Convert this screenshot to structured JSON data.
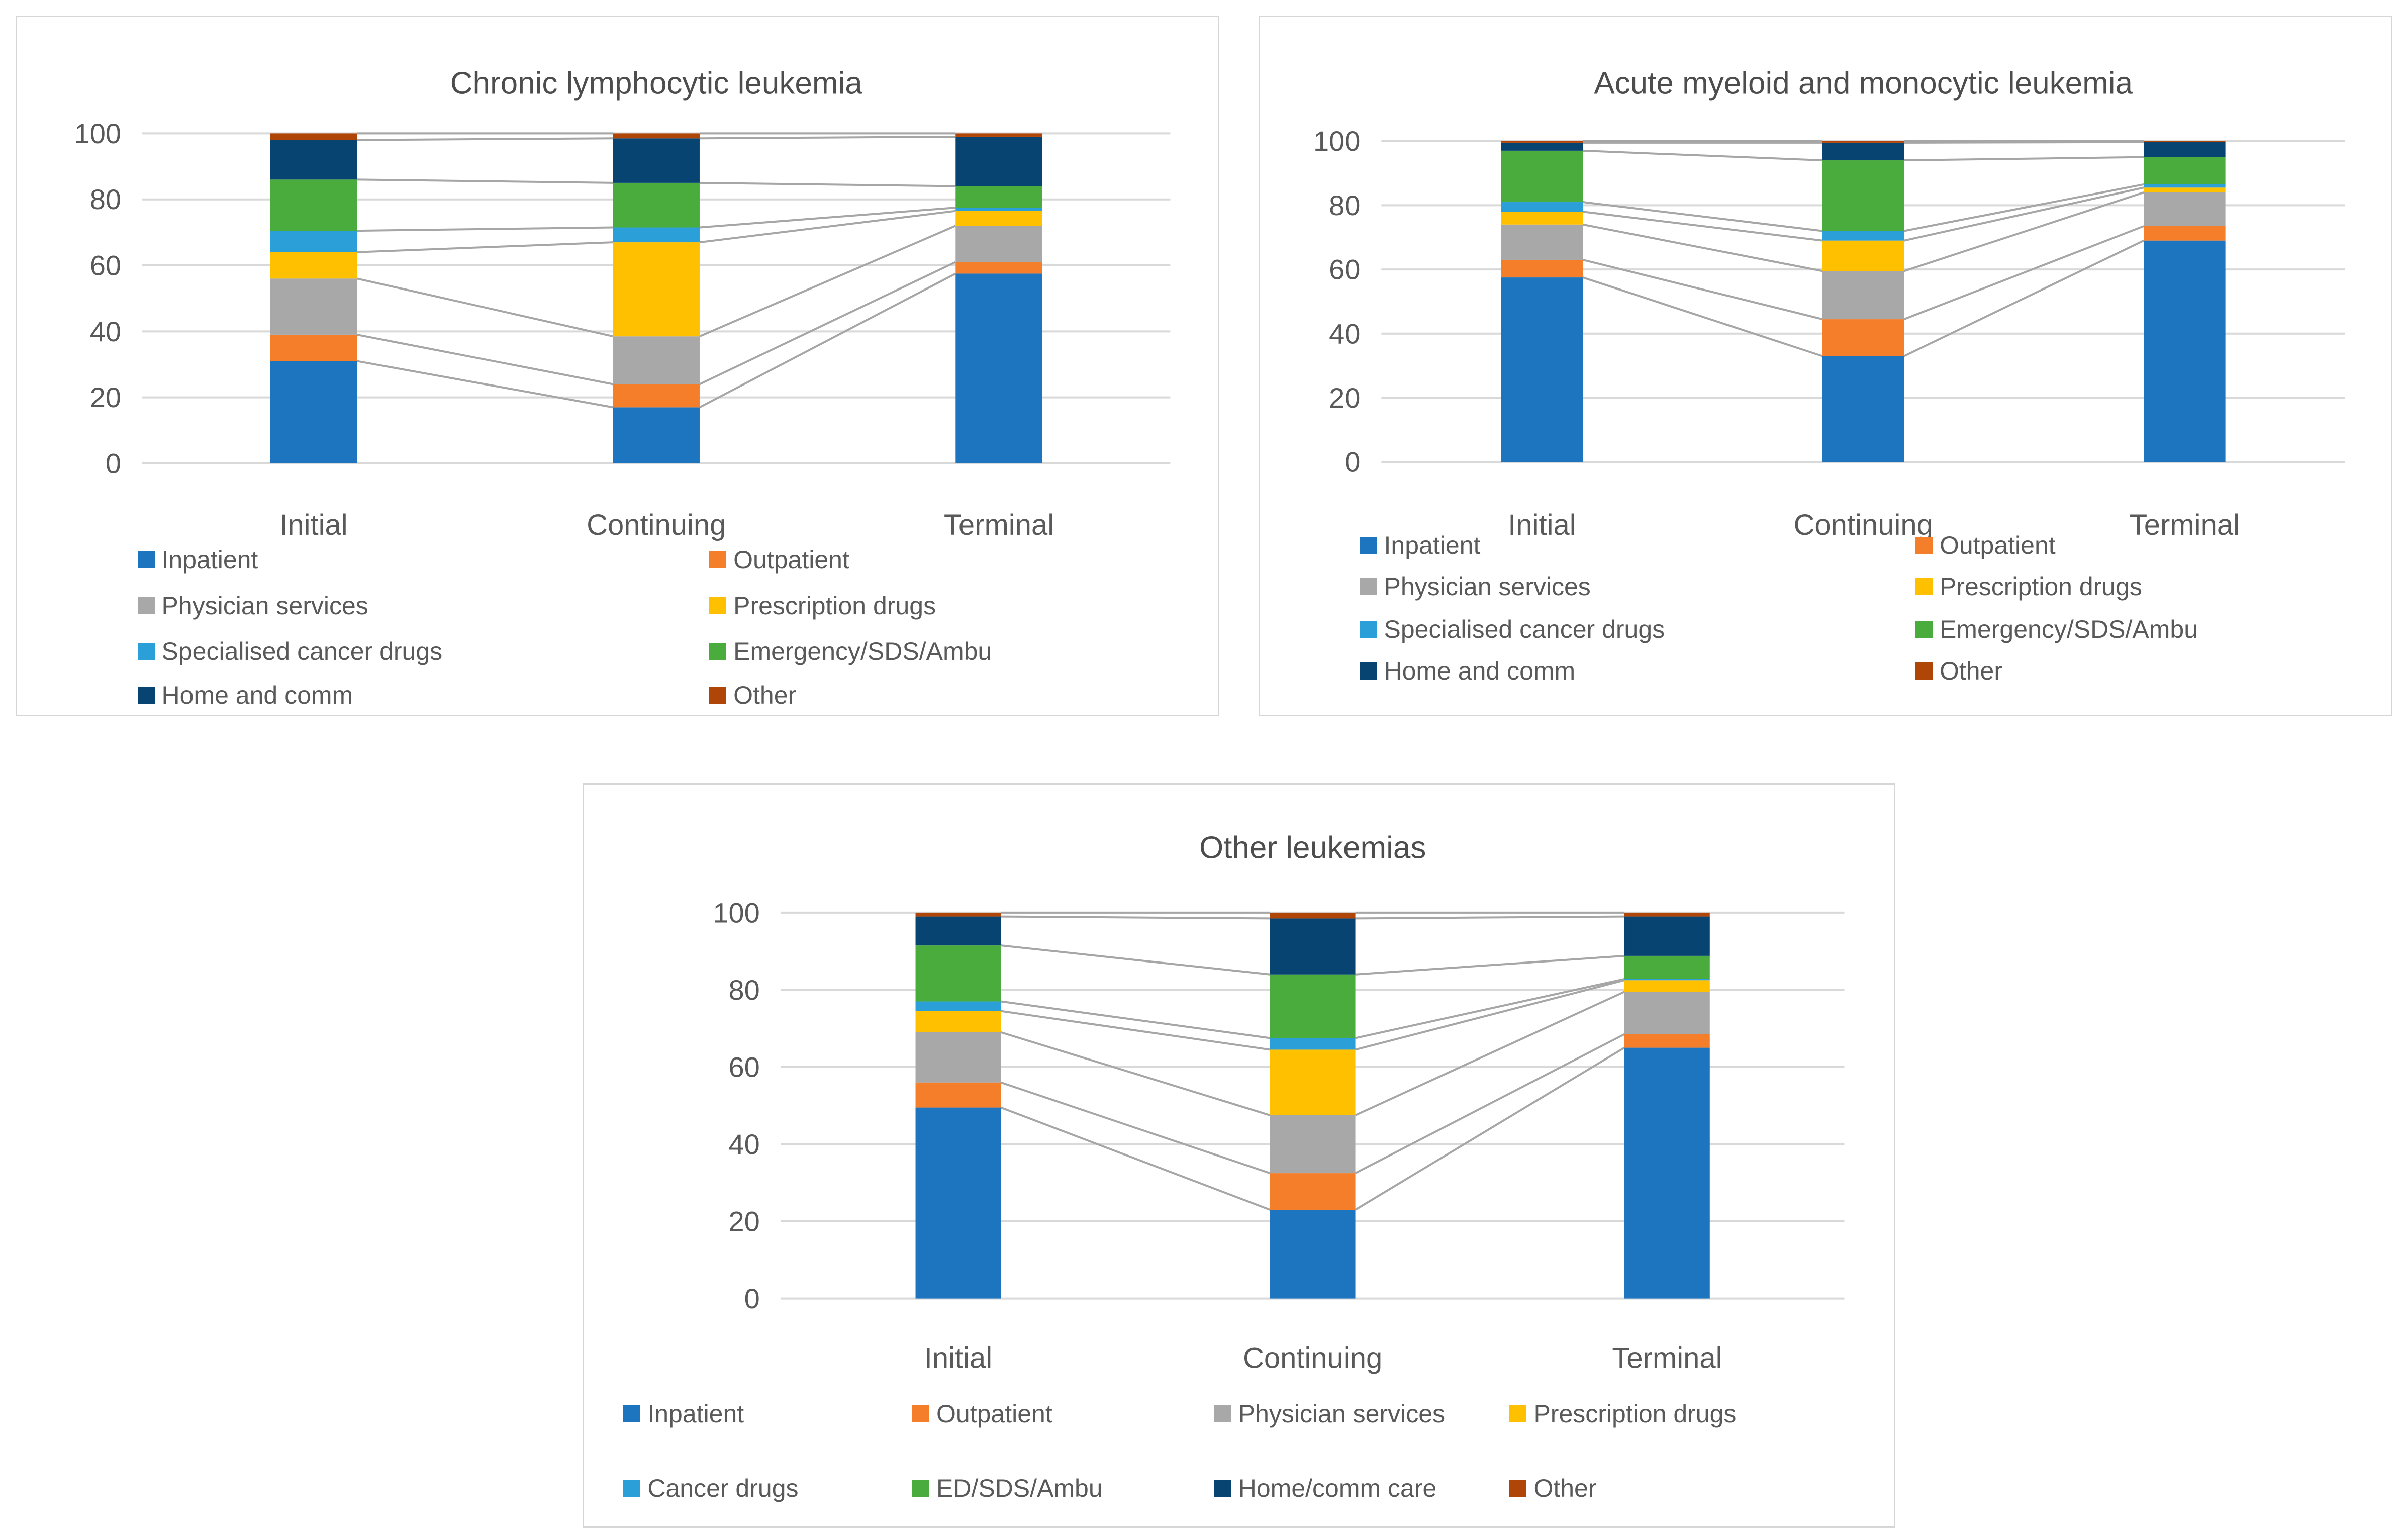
{
  "page": {
    "background": "#FFFFFF"
  },
  "palette": {
    "inpatient": "#1C75BE",
    "outpatient": "#F57E2B",
    "physician": "#A8A8A8",
    "prescription": "#FFC000",
    "cancer_drugs": "#2B9FD7",
    "emergency": "#4AAC3C",
    "home": "#084471",
    "other": "#B04508"
  },
  "styles": {
    "grid_color": "#D9D9D9",
    "box_border_color": "#D6D6D6",
    "series_line_color": "#A6A6A6",
    "text_color": "#595959",
    "title_color": "#4D4D4D"
  },
  "chart_data": [
    {
      "type": "bar",
      "stacked": true,
      "percent_stacked": true,
      "title": "Chronic lymphocytic leukemia",
      "categories": [
        "Initial",
        "Continuing",
        "Terminal"
      ],
      "ylim": [
        0,
        100
      ],
      "yticks": [
        0,
        20,
        40,
        60,
        80,
        100
      ],
      "grid": true,
      "legend_position": "bottom",
      "legend_columns": 2,
      "series": [
        {
          "name": "Inpatient",
          "color_key": "inpatient",
          "values": [
            31,
            17,
            57.5
          ]
        },
        {
          "name": "Outpatient",
          "color_key": "outpatient",
          "values": [
            8,
            7,
            3.5
          ]
        },
        {
          "name": "Physician services",
          "color_key": "physician",
          "values": [
            17,
            14.5,
            11
          ]
        },
        {
          "name": "Prescription drugs",
          "color_key": "prescription",
          "values": [
            8,
            28.5,
            4.5
          ]
        },
        {
          "name": "Specialised cancer drugs",
          "color_key": "cancer_drugs",
          "values": [
            6.5,
            4.5,
            1
          ]
        },
        {
          "name": "Emergency/SDS/Ambu",
          "color_key": "emergency",
          "values": [
            15.5,
            13.5,
            6.5
          ]
        },
        {
          "name": "Home and comm",
          "color_key": "home",
          "values": [
            12,
            13.5,
            15
          ]
        },
        {
          "name": "Other",
          "color_key": "other",
          "values": [
            2,
            1.5,
            1
          ]
        }
      ]
    },
    {
      "type": "bar",
      "stacked": true,
      "percent_stacked": true,
      "title": "Acute myeloid and monocytic leukemia",
      "categories": [
        "Initial",
        "Continuing",
        "Terminal"
      ],
      "ylim": [
        0,
        100
      ],
      "yticks": [
        0,
        20,
        40,
        60,
        80,
        100
      ],
      "grid": true,
      "legend_position": "bottom",
      "legend_columns": 2,
      "series": [
        {
          "name": "Inpatient",
          "color_key": "inpatient",
          "values": [
            57.5,
            33,
            69
          ]
        },
        {
          "name": "Outpatient",
          "color_key": "outpatient",
          "values": [
            5.5,
            11.5,
            4.5
          ]
        },
        {
          "name": "Physician services",
          "color_key": "physician",
          "values": [
            11,
            15,
            10.5
          ]
        },
        {
          "name": "Prescription drugs",
          "color_key": "prescription",
          "values": [
            4,
            9.5,
            1.5
          ]
        },
        {
          "name": "Specialised cancer drugs",
          "color_key": "cancer_drugs",
          "values": [
            3,
            3,
            1
          ]
        },
        {
          "name": "Emergency/SDS/Ambu",
          "color_key": "emergency",
          "values": [
            16,
            22,
            8.5
          ]
        },
        {
          "name": "Home and comm",
          "color_key": "home",
          "values": [
            2.5,
            5.5,
            4.7
          ]
        },
        {
          "name": "Other",
          "color_key": "other",
          "values": [
            0.5,
            0.5,
            0.3
          ]
        }
      ]
    },
    {
      "type": "bar",
      "stacked": true,
      "percent_stacked": true,
      "title": "Other leukemias",
      "categories": [
        "Initial",
        "Continuing",
        "Terminal"
      ],
      "ylim": [
        0,
        100
      ],
      "yticks": [
        0,
        20,
        40,
        60,
        80,
        100
      ],
      "grid": true,
      "legend_position": "bottom",
      "legend_columns": 4,
      "series": [
        {
          "name": "Inpatient",
          "color_key": "inpatient",
          "values": [
            49.5,
            23,
            65
          ]
        },
        {
          "name": "Outpatient",
          "color_key": "outpatient",
          "values": [
            6.5,
            9.5,
            3.5
          ]
        },
        {
          "name": "Physician services",
          "color_key": "physician",
          "values": [
            13,
            15,
            11
          ]
        },
        {
          "name": "Prescription drugs",
          "color_key": "prescription",
          "values": [
            5.5,
            17,
            3
          ]
        },
        {
          "name": "Cancer drugs",
          "color_key": "cancer_drugs",
          "values": [
            2.5,
            3,
            0.3
          ]
        },
        {
          "name": "ED/SDS/Ambu",
          "color_key": "emergency",
          "values": [
            14.5,
            16.5,
            6
          ]
        },
        {
          "name": "Home/comm care",
          "color_key": "home",
          "values": [
            7.5,
            14.5,
            10.2
          ]
        },
        {
          "name": "Other",
          "color_key": "other",
          "values": [
            1,
            1.5,
            1
          ]
        }
      ]
    }
  ]
}
